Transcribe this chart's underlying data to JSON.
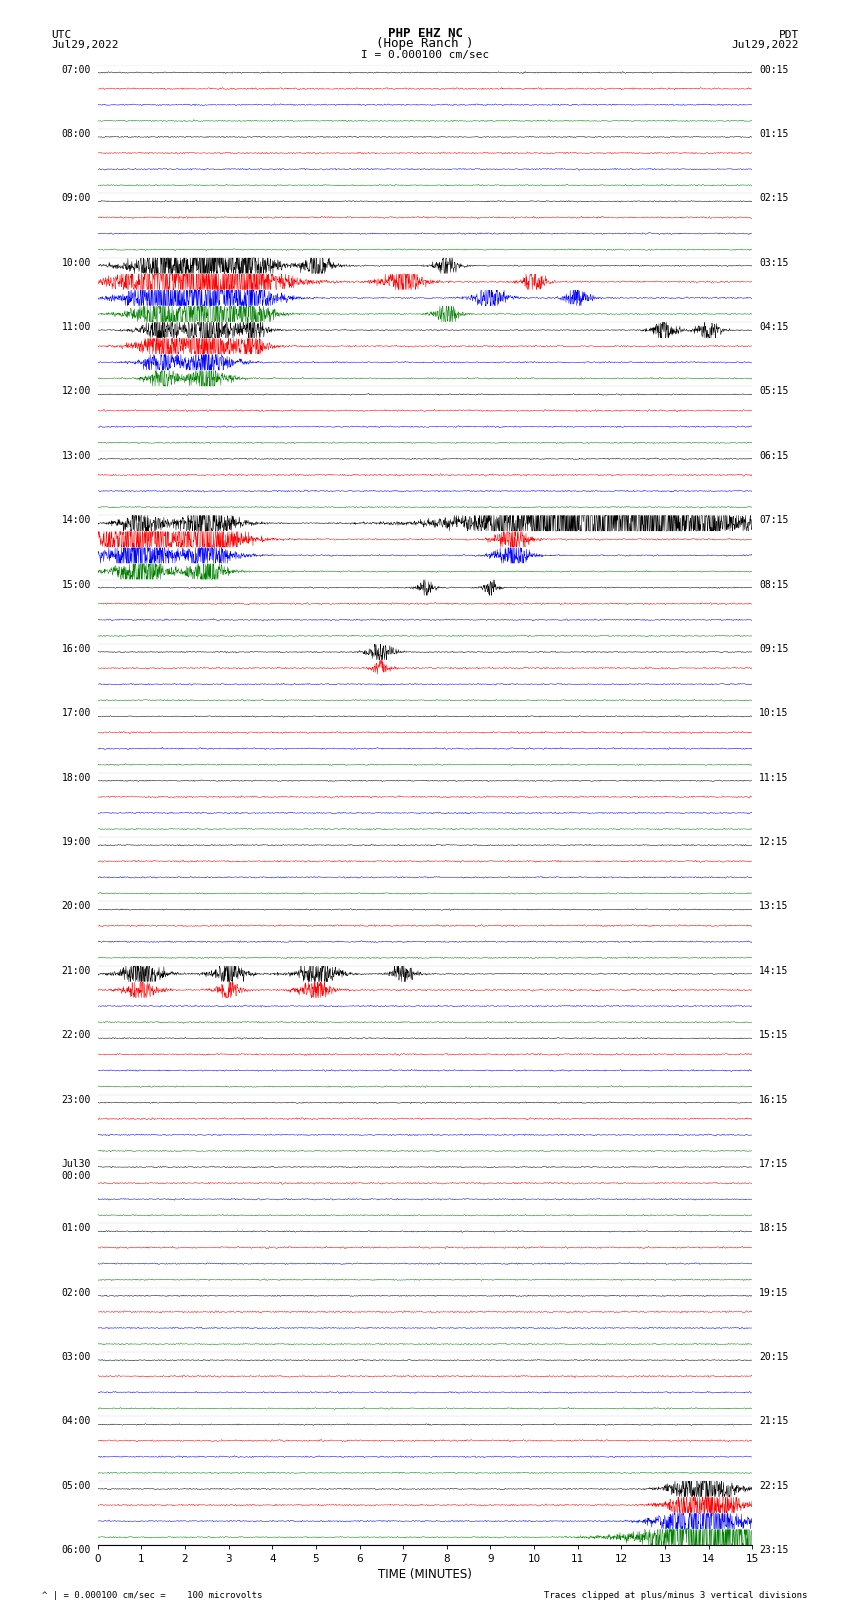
{
  "title_line1": "PHP EHZ NC",
  "title_line2": "(Hope Ranch )",
  "scale_label": "I = 0.000100 cm/sec",
  "left_header": "UTC",
  "left_date": "Jul29,2022",
  "right_header": "PDT",
  "right_date": "Jul29,2022",
  "xlabel": "TIME (MINUTES)",
  "footer_left": "^ | = 0.000100 cm/sec =    100 microvolts",
  "footer_right": "Traces clipped at plus/minus 3 vertical divisions",
  "xmin": 0,
  "xmax": 15,
  "xticks": [
    0,
    1,
    2,
    3,
    4,
    5,
    6,
    7,
    8,
    9,
    10,
    11,
    12,
    13,
    14,
    15
  ],
  "colors": [
    "black",
    "red",
    "blue",
    "green"
  ],
  "background": "white",
  "num_rows": 92,
  "amplitude_scale": 3.0,
  "utc_labels": {
    "0": "07:00",
    "4": "08:00",
    "8": "09:00",
    "12": "10:00",
    "16": "11:00",
    "20": "12:00",
    "24": "13:00",
    "28": "14:00",
    "32": "15:00",
    "36": "16:00",
    "40": "17:00",
    "44": "18:00",
    "48": "19:00",
    "52": "20:00",
    "56": "21:00",
    "60": "22:00",
    "64": "23:00",
    "68": "Jul30\n00:00",
    "72": "01:00",
    "76": "02:00",
    "80": "03:00",
    "84": "04:00",
    "88": "05:00",
    "92": "06:00"
  },
  "pdt_labels": {
    "0": "00:15",
    "4": "01:15",
    "8": "02:15",
    "12": "03:15",
    "16": "04:15",
    "20": "05:15",
    "24": "06:15",
    "28": "07:15",
    "32": "08:15",
    "36": "09:15",
    "40": "10:15",
    "44": "11:15",
    "48": "12:15",
    "52": "13:15",
    "56": "14:15",
    "60": "15:15",
    "64": "16:15",
    "68": "17:15",
    "72": "18:15",
    "76": "19:15",
    "80": "20:15",
    "84": "21:15",
    "88": "22:15",
    "92": "23:15"
  }
}
